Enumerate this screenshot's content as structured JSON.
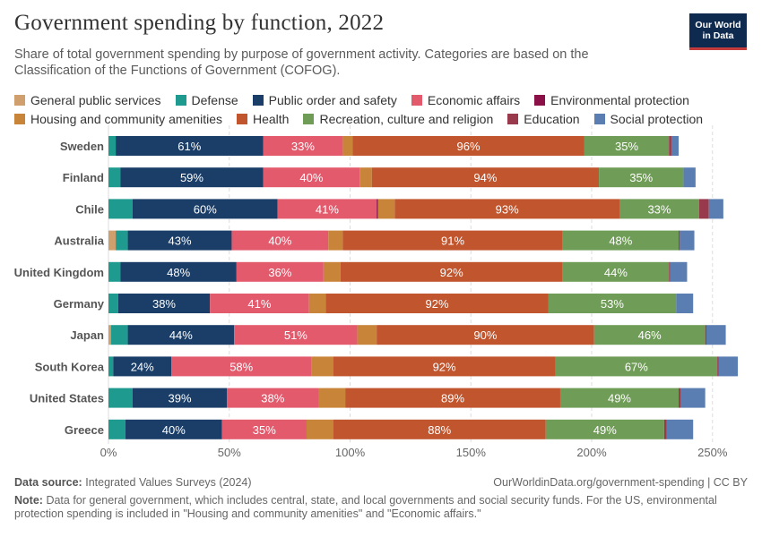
{
  "header": {
    "title": "Government spending by function, 2022",
    "subtitle": "Share of total government spending by purpose of government activity. Categories are based on the Classification of the Functions of Government (COFOG).",
    "logo_line1": "Our World",
    "logo_line2": "in Data"
  },
  "footer": {
    "source_label": "Data source:",
    "source_text": "Integrated Values Surveys (2024)",
    "url": "OurWorldinData.org/government-spending | CC BY",
    "note_label": "Note:",
    "note_text": "Data for general government, which includes central, state, and local governments and social security funds. For the US, environmental protection spending is included in \"Housing and community amenities\" and \"Economic affairs.\""
  },
  "chart_data": {
    "type": "bar",
    "orientation": "horizontal",
    "stacked": true,
    "categories": [
      "Sweden",
      "Finland",
      "Chile",
      "Australia",
      "United Kingdom",
      "Germany",
      "Japan",
      "South Korea",
      "United States",
      "Greece"
    ],
    "x_ticks": [
      "0%",
      "50%",
      "100%",
      "150%",
      "200%",
      "250%"
    ],
    "x_tick_values": [
      0,
      50,
      100,
      150,
      200,
      250
    ],
    "xlim": [
      0,
      260
    ],
    "grid": "vertical dashed",
    "legend_position": "top",
    "series": [
      {
        "name": "General public services",
        "color": "#cf9f6e",
        "values": [
          0,
          0,
          0,
          3,
          0,
          0,
          1,
          0,
          0,
          0
        ]
      },
      {
        "name": "Defense",
        "color": "#1f9a8f",
        "values": [
          3,
          5,
          10,
          5,
          5,
          4,
          7,
          2,
          10,
          7
        ]
      },
      {
        "name": "Public order and safety",
        "color": "#1a3e68",
        "values": [
          61,
          59,
          60,
          43,
          48,
          38,
          44,
          24,
          39,
          40
        ]
      },
      {
        "name": "Economic affairs",
        "color": "#e35a6d",
        "values": [
          33,
          40,
          41,
          40,
          36,
          41,
          51,
          58,
          38,
          35
        ]
      },
      {
        "name": "Environmental protection",
        "color": "#8c1048",
        "values": [
          0,
          0,
          0.5,
          0,
          0,
          0,
          0,
          0,
          0,
          0
        ]
      },
      {
        "name": "Housing and community amenities",
        "color": "#c8853a",
        "values": [
          4,
          5,
          7,
          6,
          7,
          7,
          8,
          9,
          11,
          11
        ]
      },
      {
        "name": "Health",
        "color": "#c1552e",
        "values": [
          96,
          94,
          93,
          91,
          92,
          92,
          90,
          92,
          89,
          88
        ]
      },
      {
        "name": "Recreation, culture and religion",
        "color": "#6f9c56",
        "values": [
          35,
          35,
          33,
          48,
          44,
          53,
          46,
          67,
          49,
          49
        ]
      },
      {
        "name": "Education",
        "color": "#983a4c",
        "values": [
          1,
          0,
          4,
          0.5,
          0.5,
          0,
          0.5,
          0.5,
          1,
          1
        ]
      },
      {
        "name": "Social protection",
        "color": "#5a7eb2",
        "values": [
          3,
          5,
          6,
          6,
          7,
          7,
          8,
          8,
          10,
          11
        ]
      }
    ],
    "data_labels": [
      {
        "series": "Public order and safety",
        "values": [
          "61%",
          "59%",
          "60%",
          "43%",
          "48%",
          "38%",
          "44%",
          "24%",
          "39%",
          "40%"
        ]
      },
      {
        "series": "Economic affairs",
        "values": [
          "33%",
          "40%",
          "41%",
          "40%",
          "36%",
          "41%",
          "51%",
          "58%",
          "38%",
          "35%"
        ]
      },
      {
        "series": "Health",
        "values": [
          "96%",
          "94%",
          "93%",
          "91%",
          "92%",
          "92%",
          "90%",
          "92%",
          "89%",
          "88%"
        ]
      },
      {
        "series": "Recreation, culture and religion",
        "values": [
          "35%",
          "35%",
          "33%",
          "48%",
          "44%",
          "53%",
          "46%",
          "67%",
          "49%",
          "49%"
        ]
      }
    ]
  }
}
